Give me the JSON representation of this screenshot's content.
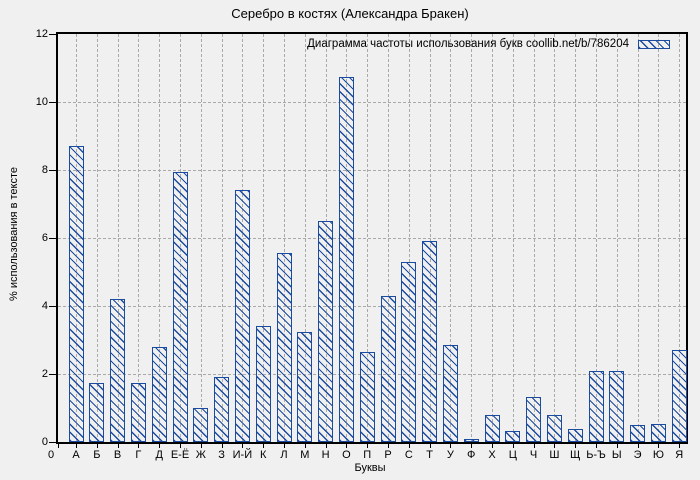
{
  "title": "Серебро в костях (Александра Бракен)",
  "legend": {
    "label": "Диаграмма частоты использования букв coollib.net/b/786204"
  },
  "axes": {
    "x_label": "Буквы",
    "y_label": "% использования в тексте",
    "y_ticks": [
      0,
      2,
      4,
      6,
      8,
      10,
      12
    ],
    "x_origin_label": "0"
  },
  "colors": {
    "bar": "#1b4b9e",
    "grid": "#a9a9a9",
    "background": "#f0f0f0",
    "axis": "#000000",
    "text": "#000000"
  },
  "chart_data": {
    "type": "bar",
    "title": "Серебро в костях (Александра Бракен)",
    "xlabel": "Буквы",
    "ylabel": "% использования в тексте",
    "ylim": [
      0,
      12
    ],
    "grid": true,
    "legend": "Диаграмма частоты использования букв coollib.net/b/786204",
    "legend_position": "top-right",
    "bar_style": "hatched-diagonal",
    "categories": [
      "А",
      "Б",
      "В",
      "Г",
      "Д",
      "Е-Ё",
      "Ж",
      "З",
      "И-Й",
      "К",
      "Л",
      "М",
      "Н",
      "О",
      "П",
      "Р",
      "С",
      "Т",
      "У",
      "Ф",
      "Х",
      "Ц",
      "Ч",
      "Ш",
      "Щ",
      "Ь-Ъ",
      "Ы",
      "Э",
      "Ю",
      "Я"
    ],
    "values": [
      8.7,
      1.75,
      4.2,
      1.75,
      2.8,
      7.95,
      1.0,
      1.9,
      7.4,
      3.4,
      5.55,
      3.25,
      6.5,
      10.75,
      2.65,
      4.3,
      5.3,
      5.9,
      2.85,
      0.1,
      0.8,
      0.33,
      1.32,
      0.78,
      0.39,
      2.1,
      2.08,
      0.5,
      0.53,
      2.7
    ]
  }
}
